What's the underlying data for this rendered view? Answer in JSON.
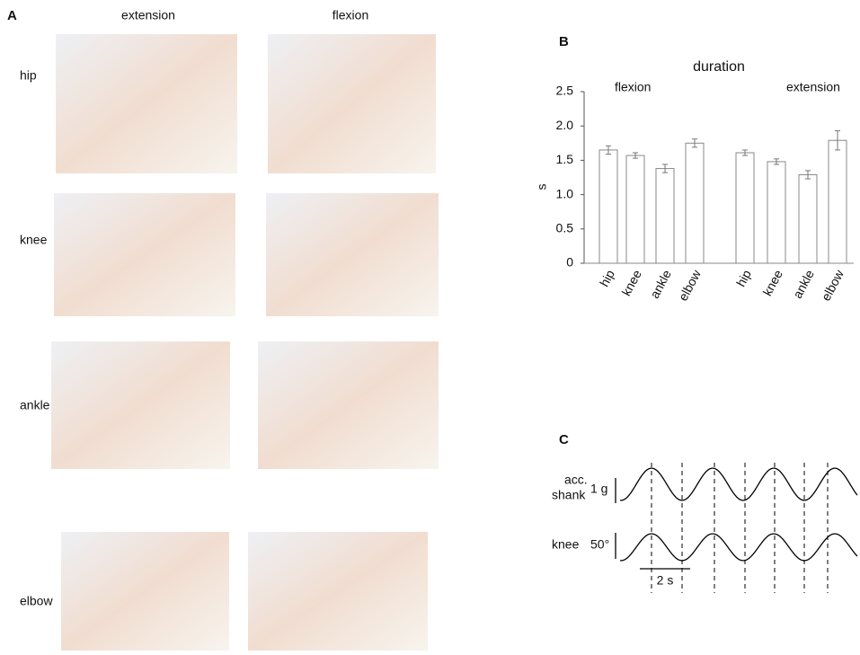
{
  "panel_labels": [
    "A",
    "B",
    "C"
  ],
  "photo_grid": {
    "columns": [
      "extension",
      "flexion"
    ],
    "rows": [
      "hip",
      "knee",
      "ankle",
      "elbow"
    ]
  },
  "chart_data": {
    "type": "bar",
    "title": "duration",
    "y_label": "s",
    "ylim": [
      0,
      2.5
    ],
    "yticks": [
      0,
      0.5,
      {
        "value": 1,
        "label": "1.0"
      },
      1.5,
      {
        "value": 2,
        "label": "2.0"
      },
      2.5
    ],
    "color": "#ffffff",
    "edge_color": "#888888",
    "groups": [
      {
        "name": "flexion",
        "categories": [
          "hip",
          "knee",
          "ankle",
          "elbow"
        ],
        "values": [
          1.65,
          1.57,
          1.38,
          1.75
        ],
        "errors": [
          0.06,
          0.04,
          0.06,
          0.06
        ]
      },
      {
        "name": "extension",
        "categories": [
          "hip",
          "knee",
          "ankle",
          "elbow"
        ],
        "values": [
          1.61,
          1.48,
          1.29,
          1.79
        ],
        "errors": [
          0.04,
          0.04,
          0.06,
          0.14
        ]
      }
    ]
  },
  "traces": {
    "rows": [
      {
        "label_lines": [
          "acc.",
          "shank"
        ],
        "scale": "1 g"
      },
      {
        "label_lines": [
          "knee"
        ],
        "scale": "50°"
      }
    ],
    "time_scale": "2 s"
  }
}
